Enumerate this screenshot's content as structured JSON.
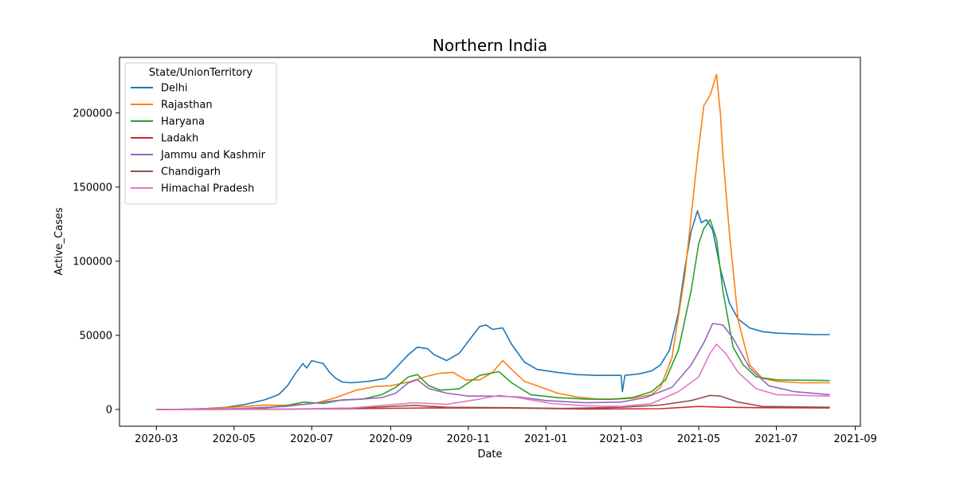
{
  "chart_data": {
    "type": "line",
    "title": "Northern India",
    "xlabel": "Date",
    "ylabel": "Active_Cases",
    "x_range": [
      "2020-02-01",
      "2021-09-05"
    ],
    "ylim": [
      -11300,
      237500
    ],
    "x_ticks": [
      "2020-03",
      "2020-05",
      "2020-07",
      "2020-09",
      "2020-11",
      "2021-01",
      "2021-03",
      "2021-05",
      "2021-07",
      "2021-09"
    ],
    "y_ticks": [
      0,
      50000,
      100000,
      150000,
      200000
    ],
    "grid": false,
    "legend": {
      "title": "State/UnionTerritory",
      "placement": "top-left"
    },
    "series": [
      {
        "name": "Delhi",
        "color": "#1f77b4",
        "points": [
          [
            "2020-03-01",
            0
          ],
          [
            "2020-03-20",
            100
          ],
          [
            "2020-04-10",
            700
          ],
          [
            "2020-04-25",
            1500
          ],
          [
            "2020-05-10",
            3500
          ],
          [
            "2020-05-25",
            6500
          ],
          [
            "2020-06-05",
            10000
          ],
          [
            "2020-06-12",
            16000
          ],
          [
            "2020-06-18",
            24000
          ],
          [
            "2020-06-24",
            31000
          ],
          [
            "2020-06-27",
            28000
          ],
          [
            "2020-07-01",
            33000
          ],
          [
            "2020-07-05",
            32000
          ],
          [
            "2020-07-10",
            31000
          ],
          [
            "2020-07-15",
            25000
          ],
          [
            "2020-07-20",
            21000
          ],
          [
            "2020-07-25",
            18500
          ],
          [
            "2020-08-01",
            18000
          ],
          [
            "2020-08-15",
            19000
          ],
          [
            "2020-08-28",
            21000
          ],
          [
            "2020-09-05",
            28000
          ],
          [
            "2020-09-15",
            37000
          ],
          [
            "2020-09-22",
            42000
          ],
          [
            "2020-09-30",
            41000
          ],
          [
            "2020-10-05",
            37000
          ],
          [
            "2020-10-15",
            33000
          ],
          [
            "2020-10-25",
            38000
          ],
          [
            "2020-11-01",
            46000
          ],
          [
            "2020-11-10",
            56000
          ],
          [
            "2020-11-15",
            57000
          ],
          [
            "2020-11-20",
            54000
          ],
          [
            "2020-11-28",
            55000
          ],
          [
            "2020-12-05",
            44000
          ],
          [
            "2020-12-15",
            32000
          ],
          [
            "2020-12-25",
            27000
          ],
          [
            "2021-01-10",
            25000
          ],
          [
            "2021-01-25",
            23500
          ],
          [
            "2021-02-10",
            23000
          ],
          [
            "2021-02-25",
            23000
          ],
          [
            "2021-03-01",
            23000
          ],
          [
            "2021-03-02",
            12000
          ],
          [
            "2021-03-04",
            23000
          ],
          [
            "2021-03-15",
            24000
          ],
          [
            "2021-03-25",
            26000
          ],
          [
            "2021-04-01",
            30000
          ],
          [
            "2021-04-08",
            40000
          ],
          [
            "2021-04-15",
            65000
          ],
          [
            "2021-04-20",
            95000
          ],
          [
            "2021-04-25",
            120000
          ],
          [
            "2021-04-30",
            134000
          ],
          [
            "2021-05-03",
            126000
          ],
          [
            "2021-05-07",
            128000
          ],
          [
            "2021-05-12",
            121000
          ],
          [
            "2021-05-18",
            95000
          ],
          [
            "2021-05-25",
            72000
          ],
          [
            "2021-06-01",
            61000
          ],
          [
            "2021-06-10",
            55000
          ],
          [
            "2021-06-20",
            52500
          ],
          [
            "2021-07-01",
            51500
          ],
          [
            "2021-07-15",
            51000
          ],
          [
            "2021-08-01",
            50500
          ],
          [
            "2021-08-12",
            50500
          ]
        ]
      },
      {
        "name": "Rajasthan",
        "color": "#ff7f0e",
        "points": [
          [
            "2020-03-01",
            0
          ],
          [
            "2020-04-01",
            200
          ],
          [
            "2020-04-20",
            1100
          ],
          [
            "2020-05-10",
            2000
          ],
          [
            "2020-05-25",
            3000
          ],
          [
            "2020-06-10",
            2800
          ],
          [
            "2020-06-25",
            3500
          ],
          [
            "2020-07-05",
            4500
          ],
          [
            "2020-07-20",
            8000
          ],
          [
            "2020-08-05",
            13000
          ],
          [
            "2020-08-20",
            15500
          ],
          [
            "2020-09-01",
            16000
          ],
          [
            "2020-09-15",
            18500
          ],
          [
            "2020-09-30",
            22500
          ],
          [
            "2020-10-10",
            24500
          ],
          [
            "2020-10-20",
            25000
          ],
          [
            "2020-10-30",
            20000
          ],
          [
            "2020-11-10",
            20000
          ],
          [
            "2020-11-20",
            25000
          ],
          [
            "2020-11-28",
            33000
          ],
          [
            "2020-12-05",
            27000
          ],
          [
            "2020-12-15",
            19000
          ],
          [
            "2020-12-25",
            16000
          ],
          [
            "2021-01-10",
            11000
          ],
          [
            "2021-01-25",
            8500
          ],
          [
            "2021-02-10",
            7000
          ],
          [
            "2021-02-25",
            7000
          ],
          [
            "2021-03-10",
            7500
          ],
          [
            "2021-03-25",
            10000
          ],
          [
            "2021-04-01",
            15000
          ],
          [
            "2021-04-10",
            35000
          ],
          [
            "2021-04-20",
            90000
          ],
          [
            "2021-04-25",
            130000
          ],
          [
            "2021-04-30",
            170000
          ],
          [
            "2021-05-05",
            205000
          ],
          [
            "2021-05-10",
            212000
          ],
          [
            "2021-05-15",
            226000
          ],
          [
            "2021-05-18",
            200000
          ],
          [
            "2021-05-20",
            172000
          ],
          [
            "2021-05-25",
            120000
          ],
          [
            "2021-06-01",
            60000
          ],
          [
            "2021-06-10",
            30000
          ],
          [
            "2021-06-20",
            21000
          ],
          [
            "2021-07-01",
            19000
          ],
          [
            "2021-07-20",
            18000
          ],
          [
            "2021-08-12",
            18000
          ]
        ]
      },
      {
        "name": "Haryana",
        "color": "#2ca02c",
        "points": [
          [
            "2020-03-01",
            0
          ],
          [
            "2020-04-01",
            100
          ],
          [
            "2020-05-01",
            500
          ],
          [
            "2020-05-25",
            1000
          ],
          [
            "2020-06-10",
            2500
          ],
          [
            "2020-06-25",
            5000
          ],
          [
            "2020-07-10",
            4000
          ],
          [
            "2020-07-25",
            6500
          ],
          [
            "2020-08-10",
            7000
          ],
          [
            "2020-08-25",
            10000
          ],
          [
            "2020-09-05",
            15000
          ],
          [
            "2020-09-15",
            22000
          ],
          [
            "2020-09-22",
            23500
          ],
          [
            "2020-10-01",
            16000
          ],
          [
            "2020-10-10",
            13000
          ],
          [
            "2020-10-25",
            14000
          ],
          [
            "2020-11-10",
            23000
          ],
          [
            "2020-11-25",
            25500
          ],
          [
            "2020-12-05",
            18000
          ],
          [
            "2020-12-20",
            10000
          ],
          [
            "2021-01-10",
            8000
          ],
          [
            "2021-02-01",
            7000
          ],
          [
            "2021-02-20",
            6800
          ],
          [
            "2021-03-10",
            8000
          ],
          [
            "2021-03-25",
            12000
          ],
          [
            "2021-04-05",
            20000
          ],
          [
            "2021-04-15",
            40000
          ],
          [
            "2021-04-25",
            80000
          ],
          [
            "2021-05-01",
            112000
          ],
          [
            "2021-05-05",
            122000
          ],
          [
            "2021-05-10",
            128000
          ],
          [
            "2021-05-15",
            115000
          ],
          [
            "2021-05-20",
            80000
          ],
          [
            "2021-05-28",
            42000
          ],
          [
            "2021-06-05",
            30000
          ],
          [
            "2021-06-15",
            22000
          ],
          [
            "2021-07-01",
            20000
          ],
          [
            "2021-08-12",
            19500
          ]
        ]
      },
      {
        "name": "Ladakh",
        "color": "#d62728",
        "points": [
          [
            "2020-03-01",
            0
          ],
          [
            "2020-06-01",
            200
          ],
          [
            "2020-08-01",
            500
          ],
          [
            "2020-10-01",
            1000
          ],
          [
            "2020-12-01",
            1000
          ],
          [
            "2021-02-01",
            300
          ],
          [
            "2021-04-01",
            500
          ],
          [
            "2021-04-20",
            1500
          ],
          [
            "2021-05-01",
            2000
          ],
          [
            "2021-05-20",
            1500
          ],
          [
            "2021-06-15",
            1200
          ],
          [
            "2021-08-12",
            1000
          ]
        ]
      },
      {
        "name": "Jammu and Kashmir",
        "color": "#9467bd",
        "points": [
          [
            "2020-03-01",
            0
          ],
          [
            "2020-05-01",
            500
          ],
          [
            "2020-06-10",
            2000
          ],
          [
            "2020-07-01",
            4000
          ],
          [
            "2020-07-20",
            6000
          ],
          [
            "2020-08-10",
            7000
          ],
          [
            "2020-08-25",
            8000
          ],
          [
            "2020-09-05",
            11000
          ],
          [
            "2020-09-15",
            18000
          ],
          [
            "2020-09-22",
            20000
          ],
          [
            "2020-10-01",
            14000
          ],
          [
            "2020-10-15",
            11000
          ],
          [
            "2020-11-01",
            9000
          ],
          [
            "2020-11-20",
            9000
          ],
          [
            "2020-12-10",
            8500
          ],
          [
            "2021-01-01",
            6000
          ],
          [
            "2021-02-01",
            4500
          ],
          [
            "2021-03-01",
            5000
          ],
          [
            "2021-03-20",
            8000
          ],
          [
            "2021-04-10",
            15000
          ],
          [
            "2021-04-25",
            30000
          ],
          [
            "2021-05-05",
            45000
          ],
          [
            "2021-05-12",
            58000
          ],
          [
            "2021-05-20",
            57000
          ],
          [
            "2021-05-28",
            48000
          ],
          [
            "2021-06-10",
            28000
          ],
          [
            "2021-06-25",
            16000
          ],
          [
            "2021-07-15",
            12000
          ],
          [
            "2021-08-12",
            10000
          ]
        ]
      },
      {
        "name": "Chandigarh",
        "color": "#8c564b",
        "points": [
          [
            "2020-03-01",
            0
          ],
          [
            "2020-06-01",
            100
          ],
          [
            "2020-08-01",
            700
          ],
          [
            "2020-09-20",
            2800
          ],
          [
            "2020-10-15",
            1500
          ],
          [
            "2020-12-01",
            1200
          ],
          [
            "2021-01-15",
            700
          ],
          [
            "2021-03-01",
            1500
          ],
          [
            "2021-04-01",
            3000
          ],
          [
            "2021-04-25",
            6000
          ],
          [
            "2021-05-10",
            9500
          ],
          [
            "2021-05-18",
            9000
          ],
          [
            "2021-06-01",
            5000
          ],
          [
            "2021-06-20",
            2000
          ],
          [
            "2021-08-12",
            1500
          ]
        ]
      },
      {
        "name": "Himachal Pradesh",
        "color": "#e377c2",
        "points": [
          [
            "2020-03-01",
            0
          ],
          [
            "2020-06-01",
            200
          ],
          [
            "2020-08-01",
            1000
          ],
          [
            "2020-09-20",
            4500
          ],
          [
            "2020-10-15",
            3500
          ],
          [
            "2020-11-10",
            7000
          ],
          [
            "2020-11-25",
            9500
          ],
          [
            "2020-12-10",
            8000
          ],
          [
            "2021-01-05",
            4000
          ],
          [
            "2021-02-01",
            2500
          ],
          [
            "2021-03-01",
            2000
          ],
          [
            "2021-03-25",
            4000
          ],
          [
            "2021-04-15",
            12000
          ],
          [
            "2021-05-01",
            22000
          ],
          [
            "2021-05-10",
            38000
          ],
          [
            "2021-05-15",
            44000
          ],
          [
            "2021-05-22",
            38000
          ],
          [
            "2021-06-01",
            25000
          ],
          [
            "2021-06-15",
            14000
          ],
          [
            "2021-07-01",
            10000
          ],
          [
            "2021-08-12",
            9000
          ]
        ]
      }
    ]
  }
}
